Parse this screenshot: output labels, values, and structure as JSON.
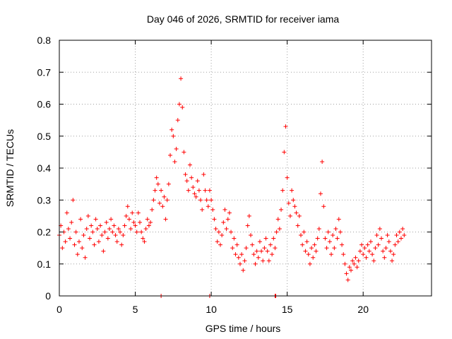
{
  "chart_data": {
    "type": "scatter",
    "title": "Day 046 of 2026, SRMTID for receiver iama",
    "xlabel": "GPS time / hours",
    "ylabel": "SRMTID / TECUs",
    "xlim": [
      0,
      24.5
    ],
    "ylim": [
      0,
      0.8
    ],
    "xticks": [
      0,
      5,
      10,
      15,
      20
    ],
    "yticks": [
      0,
      0.1,
      0.2,
      0.3,
      0.4,
      0.5,
      0.6,
      0.7,
      0.8
    ],
    "xtick_labels": [
      "0",
      "5",
      "10",
      "15",
      "20"
    ],
    "ytick_labels": [
      "0",
      "0.1",
      "0.2",
      "0.3",
      "0.4",
      "0.5",
      "0.6",
      "0.7",
      "0.8"
    ],
    "grid": true,
    "marker": "plus",
    "color": "#ff0000",
    "series": [
      {
        "name": "SRMTID",
        "points": [
          [
            0.0,
            0.19
          ],
          [
            0.1,
            0.22
          ],
          [
            0.2,
            0.15
          ],
          [
            0.3,
            0.2
          ],
          [
            0.4,
            0.17
          ],
          [
            0.5,
            0.26
          ],
          [
            0.6,
            0.21
          ],
          [
            0.7,
            0.18
          ],
          [
            0.8,
            0.23
          ],
          [
            0.9,
            0.3
          ],
          [
            1.0,
            0.16
          ],
          [
            1.1,
            0.2
          ],
          [
            1.2,
            0.13
          ],
          [
            1.3,
            0.17
          ],
          [
            1.4,
            0.24
          ],
          [
            1.5,
            0.15
          ],
          [
            1.6,
            0.19
          ],
          [
            1.7,
            0.12
          ],
          [
            1.8,
            0.21
          ],
          [
            1.9,
            0.25
          ],
          [
            2.0,
            0.18
          ],
          [
            2.1,
            0.22
          ],
          [
            2.2,
            0.2
          ],
          [
            2.3,
            0.16
          ],
          [
            2.4,
            0.24
          ],
          [
            2.5,
            0.21
          ],
          [
            2.6,
            0.17
          ],
          [
            2.7,
            0.22
          ],
          [
            2.8,
            0.19
          ],
          [
            2.9,
            0.14
          ],
          [
            3.0,
            0.2
          ],
          [
            3.1,
            0.23
          ],
          [
            3.2,
            0.18
          ],
          [
            3.3,
            0.21
          ],
          [
            3.4,
            0.24
          ],
          [
            3.5,
            0.2
          ],
          [
            3.6,
            0.22
          ],
          [
            3.7,
            0.19
          ],
          [
            3.8,
            0.17
          ],
          [
            3.9,
            0.21
          ],
          [
            4.0,
            0.2
          ],
          [
            4.1,
            0.16
          ],
          [
            4.2,
            0.19
          ],
          [
            4.3,
            0.22
          ],
          [
            4.4,
            0.25
          ],
          [
            4.5,
            0.28
          ],
          [
            4.6,
            0.24
          ],
          [
            4.7,
            0.21
          ],
          [
            4.8,
            0.26
          ],
          [
            4.9,
            0.23
          ],
          [
            5.0,
            0.22
          ],
          [
            5.1,
            0.2
          ],
          [
            5.2,
            0.26
          ],
          [
            5.3,
            0.23
          ],
          [
            5.4,
            0.2
          ],
          [
            5.5,
            0.18
          ],
          [
            5.6,
            0.17
          ],
          [
            5.7,
            0.21
          ],
          [
            5.8,
            0.24
          ],
          [
            5.9,
            0.22
          ],
          [
            6.0,
            0.23
          ],
          [
            6.1,
            0.27
          ],
          [
            6.2,
            0.3
          ],
          [
            6.3,
            0.33
          ],
          [
            6.4,
            0.37
          ],
          [
            6.5,
            0.35
          ],
          [
            6.6,
            0.29
          ],
          [
            6.7,
            0.33
          ],
          [
            6.8,
            0.28
          ],
          [
            6.9,
            0.31
          ],
          [
            7.0,
            0.24
          ],
          [
            7.1,
            0.3
          ],
          [
            7.2,
            0.35
          ],
          [
            7.3,
            0.44
          ],
          [
            7.4,
            0.52
          ],
          [
            7.5,
            0.5
          ],
          [
            7.6,
            0.42
          ],
          [
            7.7,
            0.46
          ],
          [
            7.8,
            0.55
          ],
          [
            7.9,
            0.6
          ],
          [
            8.0,
            0.68
          ],
          [
            8.1,
            0.59
          ],
          [
            8.2,
            0.45
          ],
          [
            8.3,
            0.38
          ],
          [
            8.4,
            0.36
          ],
          [
            8.5,
            0.33
          ],
          [
            8.6,
            0.41
          ],
          [
            8.7,
            0.37
          ],
          [
            8.8,
            0.34
          ],
          [
            8.9,
            0.32
          ],
          [
            9.0,
            0.31
          ],
          [
            9.1,
            0.36
          ],
          [
            9.2,
            0.33
          ],
          [
            9.3,
            0.3
          ],
          [
            9.4,
            0.27
          ],
          [
            9.5,
            0.38
          ],
          [
            9.6,
            0.33
          ],
          [
            9.7,
            0.3
          ],
          [
            9.8,
            0.28
          ],
          [
            9.9,
            0.33
          ],
          [
            10.0,
            0.3
          ],
          [
            10.1,
            0.27
          ],
          [
            10.2,
            0.24
          ],
          [
            10.3,
            0.21
          ],
          [
            10.4,
            0.17
          ],
          [
            10.5,
            0.2
          ],
          [
            10.6,
            0.16
          ],
          [
            10.7,
            0.19
          ],
          [
            10.8,
            0.23
          ],
          [
            10.9,
            0.27
          ],
          [
            11.0,
            0.21
          ],
          [
            11.1,
            0.24
          ],
          [
            11.2,
            0.26
          ],
          [
            11.3,
            0.2
          ],
          [
            11.4,
            0.15
          ],
          [
            11.5,
            0.18
          ],
          [
            11.6,
            0.13
          ],
          [
            11.7,
            0.16
          ],
          [
            11.8,
            0.12
          ],
          [
            11.9,
            0.1
          ],
          [
            12.0,
            0.13
          ],
          [
            12.1,
            0.08
          ],
          [
            12.2,
            0.11
          ],
          [
            12.3,
            0.15
          ],
          [
            12.4,
            0.22
          ],
          [
            12.5,
            0.25
          ],
          [
            12.6,
            0.19
          ],
          [
            12.7,
            0.16
          ],
          [
            12.8,
            0.13
          ],
          [
            12.9,
            0.1
          ],
          [
            13.0,
            0.14
          ],
          [
            13.1,
            0.12
          ],
          [
            13.2,
            0.17
          ],
          [
            13.3,
            0.14
          ],
          [
            13.4,
            0.11
          ],
          [
            13.5,
            0.15
          ],
          [
            13.6,
            0.18
          ],
          [
            13.7,
            0.14
          ],
          [
            13.8,
            0.11
          ],
          [
            13.9,
            0.16
          ],
          [
            14.0,
            0.13
          ],
          [
            14.1,
            0.18
          ],
          [
            14.2,
            0.15
          ],
          [
            14.3,
            0.2
          ],
          [
            14.4,
            0.24
          ],
          [
            14.5,
            0.21
          ],
          [
            14.6,
            0.27
          ],
          [
            14.7,
            0.33
          ],
          [
            14.8,
            0.45
          ],
          [
            14.9,
            0.53
          ],
          [
            15.0,
            0.37
          ],
          [
            15.1,
            0.29
          ],
          [
            15.2,
            0.25
          ],
          [
            15.3,
            0.33
          ],
          [
            15.4,
            0.3
          ],
          [
            15.5,
            0.28
          ],
          [
            15.6,
            0.26
          ],
          [
            15.7,
            0.22
          ],
          [
            15.8,
            0.25
          ],
          [
            15.9,
            0.19
          ],
          [
            16.0,
            0.16
          ],
          [
            16.1,
            0.2
          ],
          [
            16.2,
            0.14
          ],
          [
            16.3,
            0.17
          ],
          [
            16.4,
            0.13
          ],
          [
            16.5,
            0.1
          ],
          [
            16.6,
            0.15
          ],
          [
            16.7,
            0.12
          ],
          [
            16.8,
            0.16
          ],
          [
            16.9,
            0.14
          ],
          [
            17.0,
            0.18
          ],
          [
            17.1,
            0.21
          ],
          [
            17.2,
            0.32
          ],
          [
            17.3,
            0.42
          ],
          [
            17.4,
            0.28
          ],
          [
            17.5,
            0.18
          ],
          [
            17.6,
            0.15
          ],
          [
            17.7,
            0.2
          ],
          [
            17.8,
            0.17
          ],
          [
            17.9,
            0.13
          ],
          [
            18.0,
            0.19
          ],
          [
            18.1,
            0.15
          ],
          [
            18.2,
            0.21
          ],
          [
            18.3,
            0.18
          ],
          [
            18.4,
            0.24
          ],
          [
            18.5,
            0.2
          ],
          [
            18.6,
            0.16
          ],
          [
            18.7,
            0.13
          ],
          [
            18.8,
            0.1
          ],
          [
            18.9,
            0.07
          ],
          [
            19.0,
            0.05
          ],
          [
            19.1,
            0.09
          ],
          [
            19.2,
            0.08
          ],
          [
            19.3,
            0.11
          ],
          [
            19.4,
            0.1
          ],
          [
            19.5,
            0.12
          ],
          [
            19.6,
            0.09
          ],
          [
            19.7,
            0.11
          ],
          [
            19.8,
            0.14
          ],
          [
            19.9,
            0.16
          ],
          [
            20.0,
            0.13
          ],
          [
            20.1,
            0.15
          ],
          [
            20.2,
            0.12
          ],
          [
            20.3,
            0.16
          ],
          [
            20.4,
            0.14
          ],
          [
            20.5,
            0.17
          ],
          [
            20.6,
            0.13
          ],
          [
            20.7,
            0.11
          ],
          [
            20.8,
            0.15
          ],
          [
            20.9,
            0.19
          ],
          [
            21.0,
            0.16
          ],
          [
            21.1,
            0.21
          ],
          [
            21.2,
            0.18
          ],
          [
            21.3,
            0.14
          ],
          [
            21.4,
            0.12
          ],
          [
            21.5,
            0.15
          ],
          [
            21.6,
            0.19
          ],
          [
            21.7,
            0.17
          ],
          [
            21.8,
            0.14
          ],
          [
            21.9,
            0.11
          ],
          [
            22.0,
            0.13
          ],
          [
            22.1,
            0.16
          ],
          [
            22.2,
            0.19
          ],
          [
            22.3,
            0.17
          ],
          [
            22.4,
            0.2
          ],
          [
            22.5,
            0.18
          ],
          [
            22.6,
            0.21
          ],
          [
            22.7,
            0.19
          ],
          [
            6.7,
            0.0
          ],
          [
            9.9,
            0.0
          ],
          [
            14.2,
            0.0
          ],
          [
            14.25,
            0.0
          ]
        ]
      }
    ]
  }
}
